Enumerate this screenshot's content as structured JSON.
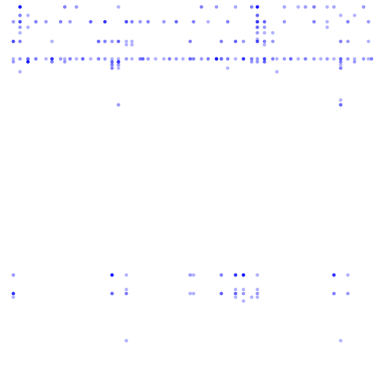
{
  "chart_data": {
    "type": "scatter",
    "title": "",
    "xlabel": "",
    "ylabel": "",
    "xlim": [
      0,
      100
    ],
    "ylim": [
      0,
      100
    ],
    "grid": false,
    "legend": "none",
    "point_color": "#0000ff",
    "background": "#ffffff",
    "x_columns": [
      1.0,
      2.7,
      4.5,
      6.6,
      8.7,
      11.4,
      13.0,
      15.3,
      16.4,
      17.8,
      19.5,
      21.2,
      23.3,
      25.4,
      27.1,
      29.0,
      30.7,
      32.8,
      34.3,
      36.5,
      37.2,
      38.6,
      40.6,
      42.8,
      44.3,
      46.1,
      47.9,
      49.8,
      50.7,
      52.8,
      54.6,
      56.8,
      58.1,
      59.8,
      61.9,
      64.0,
      66.2,
      67.7,
      69.6,
      71.8,
      72.9,
      74.9,
      76.6,
      78.6,
      80.5,
      82.8,
      84.6,
      86.3,
      88.1,
      89.9,
      91.8,
      93.6,
      96.0,
      97.3,
      98.1
    ],
    "rows": [
      {
        "y": 99.0,
        "cols": [
          2,
          8,
          10,
          16,
          29,
          31,
          34,
          36,
          37,
          41,
          43,
          44,
          45,
          47,
          48,
          52,
          56,
          59,
          62,
          65,
          68,
          71,
          74,
          77,
          81,
          84,
          88,
          89,
          90,
          93,
          96,
          97
        ],
        "alpha": [
          0.9,
          0.5,
          0.4,
          0.3,
          0.5,
          0.4,
          0.35,
          0.5,
          0.9,
          0.35,
          0.3,
          0.4,
          0.5,
          0.3,
          0.35,
          0.4,
          0.5,
          0.3,
          0.4,
          0.9,
          0.3,
          0.8,
          0.35,
          0.3,
          0.4,
          0.5,
          0.85,
          0.6,
          0.35,
          0.9,
          0.3,
          0.5
        ]
      },
      {
        "y": 96.7,
        "cols": [
          2,
          3,
          37,
          49,
          51,
          60,
          66,
          67,
          69,
          89,
          96
        ],
        "alpha": [
          0.5,
          0.3,
          0.6,
          0.3,
          0.3,
          0.4,
          0.5,
          0.3,
          0.4,
          0.5,
          0.3
        ]
      },
      {
        "y": 95.0,
        "cols": [
          1,
          2,
          4,
          5,
          7,
          9,
          12,
          14,
          17,
          18,
          19,
          21,
          23,
          25,
          28,
          30,
          33,
          37,
          38,
          41,
          45,
          47,
          50,
          53,
          55,
          57,
          58,
          60,
          61,
          63,
          66,
          67,
          68,
          70,
          72,
          74,
          76,
          79,
          82,
          84,
          86,
          89,
          90,
          92,
          95,
          97,
          98
        ],
        "alpha": [
          0.4,
          0.7,
          0.5,
          0.4,
          0.5,
          0.4,
          0.6,
          0.8,
          0.7,
          0.5,
          0.4,
          0.5,
          0.4,
          0.6,
          0.5,
          0.3,
          0.5,
          0.8,
          0.6,
          0.4,
          0.5,
          0.3,
          0.5,
          0.4,
          0.6,
          0.5,
          0.8,
          0.4,
          0.5,
          0.4,
          0.6,
          0.8,
          0.5,
          0.4,
          0.5,
          0.4,
          0.3,
          0.5,
          0.4,
          0.5,
          0.4,
          0.8,
          0.7,
          0.5,
          0.4,
          0.5,
          0.3
        ]
      },
      {
        "y": 93.5,
        "cols": [
          2,
          3,
          37,
          38,
          47,
          61,
          66,
          67,
          89,
          96
        ],
        "alpha": [
          0.4,
          0.3,
          0.6,
          0.4,
          0.3,
          0.3,
          0.6,
          0.4,
          0.6,
          0.3
        ]
      },
      {
        "y": 92.0,
        "cols": [
          2,
          37,
          38,
          39,
          66,
          67,
          68,
          89,
          98
        ],
        "alpha": [
          0.3,
          0.4,
          0.3,
          0.3,
          0.5,
          0.3,
          0.3,
          0.4,
          0.3
        ]
      },
      {
        "y": 90.3,
        "cols": [
          37,
          66,
          89
        ],
        "alpha": [
          0.3,
          0.3,
          0.3
        ]
      },
      {
        "y": 89.7,
        "cols": [
          1,
          2,
          6,
          13,
          14,
          15,
          16,
          17,
          18,
          27,
          32,
          34,
          35,
          37,
          38,
          39,
          49,
          50,
          53,
          57,
          61,
          62,
          63,
          65,
          66,
          67,
          72,
          73,
          74,
          80,
          83,
          86,
          88,
          89,
          90,
          96,
          97,
          98
        ],
        "alpha": [
          0.7,
          0.5,
          0.3,
          0.6,
          0.5,
          0.4,
          0.6,
          0.3,
          0.3,
          0.5,
          0.5,
          0.6,
          0.4,
          0.7,
          0.5,
          0.4,
          0.5,
          0.4,
          0.3,
          0.4,
          0.9,
          0.5,
          0.4,
          0.5,
          0.6,
          0.4,
          0.4,
          0.5,
          0.3,
          0.4,
          0.4,
          0.5,
          0.6,
          0.5,
          0.4,
          0.5,
          0.7,
          0.5
        ]
      },
      {
        "y": 88.8,
        "cols": [
          17,
          18,
          38,
          67,
          68,
          89,
          96
        ],
        "alpha": [
          0.3,
          0.3,
          0.3,
          0.3,
          0.3,
          0.3,
          0.3
        ]
      },
      {
        "y": 85.0,
        "cols": [
          1,
          2,
          3,
          4,
          5,
          6,
          7,
          8,
          9,
          10,
          11,
          12,
          13,
          14,
          15,
          16,
          17,
          18,
          19,
          20,
          21,
          22,
          23,
          24,
          25,
          26,
          27,
          28,
          29,
          30,
          31,
          32,
          33,
          34,
          35,
          36,
          37,
          38,
          39,
          40,
          41,
          42,
          43,
          44,
          45,
          46,
          47,
          48,
          49,
          50,
          51,
          52,
          53,
          54
        ],
        "alpha": [
          0.3,
          0.4,
          0.6,
          0.5,
          0.3,
          0.8,
          0.4,
          0.3,
          0.5,
          0.3,
          0.6,
          0.3,
          0.5,
          0.4,
          0.3,
          0.3,
          0.4,
          0.3,
          0.5,
          0.6,
          0.4,
          0.3,
          0.3,
          0.5,
          0.4,
          0.3,
          0.6,
          0.5,
          0.4,
          0.5,
          0.9,
          0.6,
          0.5,
          0.3,
          0.8,
          0.5,
          0.4,
          0.7,
          0.5,
          0.3,
          0.4,
          0.6,
          0.3,
          0.5,
          0.4,
          0.3,
          0.4,
          0.3,
          0.6,
          0.4,
          0.3,
          0.4,
          0.3,
          0.5
        ]
      },
      {
        "y": 84.2,
        "cols": [
          1,
          3,
          6,
          8,
          15,
          16,
          36,
          37,
          38,
          49,
          51,
          57,
          61,
          62,
          64,
          65,
          66,
          70,
          72,
          84,
          89,
          93,
          96,
          97
        ],
        "alpha": [
          0.4,
          0.9,
          0.5,
          0.4,
          0.6,
          0.8,
          0.4,
          0.4,
          0.6,
          0.5,
          0.4,
          0.3,
          0.9,
          0.4,
          0.5,
          0.9,
          0.5,
          0.4,
          0.6,
          0.4,
          0.5,
          0.3,
          0.5,
          0.4
        ]
      },
      {
        "y": 83.4,
        "cols": [
          15,
          16,
          49,
          96
        ],
        "alpha": [
          0.5,
          0.4,
          0.3,
          0.4
        ]
      },
      {
        "y": 82.5,
        "cols": [
          15,
          16,
          33,
          49,
          80,
          97,
          98
        ],
        "alpha": [
          0.5,
          0.3,
          0.3,
          0.5,
          0.4,
          0.5,
          0.5
        ]
      },
      {
        "y": 81.5,
        "cols": [
          2,
          40,
          67
        ],
        "alpha": [
          0.3,
          0.3,
          0.3
        ]
      },
      {
        "y": 74.8,
        "cols": [
          57,
          59
        ],
        "alpha": [
          0.5,
          0.3
        ]
      },
      {
        "y": 73.9,
        "cols": [
          49
        ],
        "alpha": [
          0.3
        ]
      },
      {
        "y": 72.6,
        "cols": [
          16,
          49,
          81
        ],
        "alpha": [
          0.4,
          0.6,
          0.6
        ]
      },
      {
        "y": 26.7,
        "cols": [
          1,
          15,
          17,
          27,
          28,
          32,
          34,
          35,
          37,
          48,
          50,
          64,
          66,
          80,
          82,
          87,
          89,
          91,
          93,
          96
        ],
        "alpha": [
          0.4,
          0.9,
          0.3,
          0.4,
          0.3,
          0.5,
          0.8,
          0.9,
          0.3,
          0.8,
          0.3,
          0.9,
          0.3,
          0.8,
          0.3,
          0.9,
          0.3,
          0.5,
          0.4,
          0.9
        ]
      },
      {
        "y": 22.8,
        "cols": [
          17,
          34,
          35,
          37,
          64,
          66
        ],
        "alpha": [
          0.3,
          0.3,
          0.3,
          0.3,
          0.3,
          0.3
        ]
      },
      {
        "y": 21.7,
        "cols": [
          1,
          15,
          17,
          27,
          28,
          32,
          34,
          35,
          37,
          48,
          50,
          64,
          66,
          80,
          82,
          87,
          89,
          91,
          93,
          96
        ],
        "alpha": [
          0.8,
          0.6,
          0.5,
          0.3,
          0.3,
          0.6,
          0.6,
          0.4,
          0.4,
          0.5,
          0.4,
          0.8,
          0.5,
          0.6,
          0.5,
          0.6,
          0.5,
          0.4,
          0.5,
          0.6
        ]
      },
      {
        "y": 20.7,
        "cols": [
          1,
          34,
          36,
          37,
          66
        ],
        "alpha": [
          0.3,
          0.3,
          0.3,
          0.3,
          0.3
        ]
      },
      {
        "y": 19.7,
        "cols": [
          35,
          64,
          97
        ],
        "alpha": [
          0.3,
          0.3,
          0.3
        ]
      },
      {
        "y": 11.8,
        "cols": [
          89
        ],
        "alpha": [
          0.3
        ]
      },
      {
        "y": 9.0,
        "cols": [
          17,
          49,
          89
        ],
        "alpha": [
          0.3,
          0.3,
          0.3
        ]
      }
    ]
  }
}
